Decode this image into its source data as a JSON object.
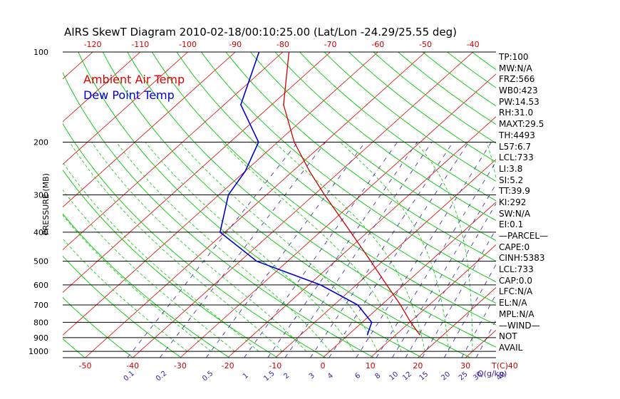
{
  "title": "AIRS SkewT Diagram 2010-02-18/00:10:25.00 (Lat/Lon -24.29/25.55 deg)",
  "colors": {
    "background": "#ffffff",
    "isotherm": "#e00000",
    "dry_adiabat": "#00c800",
    "moist_adiabat": "#00c800",
    "mixing_ratio": "#3a20a0",
    "temperature": "#cc0000",
    "dewpoint": "#0000d0",
    "isobar": "#000000"
  },
  "chart_data": {
    "type": "line",
    "title": "AIRS SkewT Diagram 2010-02-18/00:10:25.00 (Lat/Lon -24.29/25.55 deg)",
    "ylabel": "PRESSURE (MB)",
    "y_scale": "log",
    "y_inverted": true,
    "ylim": [
      1050,
      100
    ],
    "y_ticks": [
      100,
      200,
      300,
      400,
      500,
      600,
      700,
      800,
      900,
      1000
    ],
    "y_tick_labels": [
      "100",
      "200",
      "300",
      "400",
      "500",
      "600",
      "700",
      "800",
      "900",
      "1000"
    ],
    "x_bottom_ticks": [
      -50,
      -40,
      -30,
      -20,
      -10,
      0,
      10,
      20,
      30,
      40
    ],
    "x_bottom_labels": [
      "-50",
      "-40",
      "-30",
      "-20",
      "-10",
      "0",
      "10",
      "20",
      "30",
      "40"
    ],
    "x_bottom_unit": "T(C)",
    "x_top_ticks": [
      -120,
      -110,
      -100,
      -90,
      -80,
      -70,
      -60,
      -50,
      -40
    ],
    "x_top_labels": [
      "-120",
      "-110",
      "-100",
      "-90",
      "-80",
      "-70",
      "-60",
      "-50",
      "-40"
    ],
    "mixing_ratio_ticks": [
      "0.1",
      "0.2",
      "0.5",
      "1",
      "1.5",
      "2",
      "3",
      "4",
      "6",
      "8",
      "10",
      "12",
      "15",
      "20",
      "25",
      "30",
      "40"
    ],
    "mixing_ratio_unit": "Q(g/kg)",
    "series": [
      {
        "name": "Ambient Air Temp",
        "color": "#cc0000",
        "points": [
          {
            "p": 100,
            "t": -78.7
          },
          {
            "p": 150,
            "t": -67.5
          },
          {
            "p": 200,
            "t": -56.5
          },
          {
            "p": 250,
            "t": -46.5
          },
          {
            "p": 300,
            "t": -37.8
          },
          {
            "p": 400,
            "t": -23.5
          },
          {
            "p": 500,
            "t": -12.5
          },
          {
            "p": 600,
            "t": -3.6
          },
          {
            "p": 700,
            "t": 4.0
          },
          {
            "p": 800,
            "t": 10.2
          },
          {
            "p": 880,
            "t": 15.0
          }
        ]
      },
      {
        "name": "Dew Point Temp",
        "color": "#0000d0",
        "points": [
          {
            "p": 100,
            "t": -85.0
          },
          {
            "p": 150,
            "t": -76.5
          },
          {
            "p": 200,
            "t": -64.0
          },
          {
            "p": 250,
            "t": -60.0
          },
          {
            "p": 300,
            "t": -58.0
          },
          {
            "p": 400,
            "t": -51.0
          },
          {
            "p": 500,
            "t": -36.5
          },
          {
            "p": 600,
            "t": -17.5
          },
          {
            "p": 700,
            "t": -5.0
          },
          {
            "p": 800,
            "t": 2.0
          },
          {
            "p": 880,
            "t": 4.0
          }
        ]
      }
    ],
    "legend": [
      "Ambient Air Temp",
      "Dew Point Temp"
    ],
    "legend_placement": "top-left"
  },
  "stats": [
    "TP:100",
    "MW:N/A",
    "FRZ:566",
    "WB0:423",
    "PW:14.53",
    "RH:31.0",
    "MAXT:29.5",
    "TH:4493",
    "L57:6.7",
    "LCL:733",
    "LI:3.8",
    "SI:5.2",
    "TT:39.9",
    "KI:292",
    "SW:N/A",
    "EI:0.1",
    "—PARCEL—",
    "CAPE:0",
    "CINH:5383",
    "LCL:733",
    "CAP:0.0",
    "LFC:N/A",
    "EL:N/A",
    "MPL:N/A",
    "—WIND—",
    "NOT",
    "AVAIL"
  ]
}
